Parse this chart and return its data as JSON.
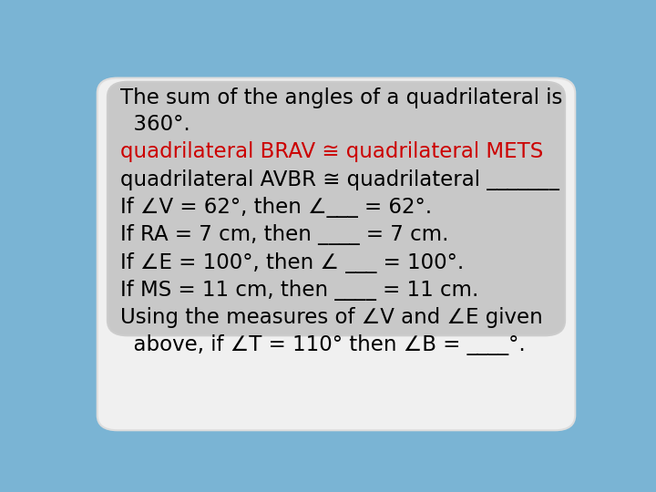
{
  "bg_gradient_top": "#6baed6",
  "bg_color": "#7ab4d4",
  "slide_color": "#ffffff",
  "card_color": "#c8c8c8",
  "figsize": [
    7.2,
    5.4
  ],
  "dpi": 100,
  "lines": [
    {
      "text": "The sum of the angles of a quadrilateral is\n  360°.",
      "color": "#000000",
      "fontsize": 16.5
    },
    {
      "text": "quadrilateral BRAV ≅ quadrilateral METS",
      "color": "#cc0000",
      "fontsize": 16.5
    },
    {
      "text": "quadrilateral AVBR ≅ quadrilateral _______",
      "color": "#000000",
      "fontsize": 16.5
    },
    {
      "text": "If ∠V = 62°, then ∠___ = 62°.",
      "color": "#000000",
      "fontsize": 16.5
    },
    {
      "text": "If RA = 7 cm, then ____ = 7 cm.",
      "color": "#000000",
      "fontsize": 16.5
    },
    {
      "text": "If ∠E = 100°, then ∠ ___ = 100°.",
      "color": "#000000",
      "fontsize": 16.5
    },
    {
      "text": "If MS = 11 cm, then ____ = 11 cm.",
      "color": "#000000",
      "fontsize": 16.5
    },
    {
      "text": "Using the measures of ∠V and ∠E given\n  above, if ∠T = 110° then ∠B = ____°.",
      "color": "#000000",
      "fontsize": 16.5
    }
  ]
}
